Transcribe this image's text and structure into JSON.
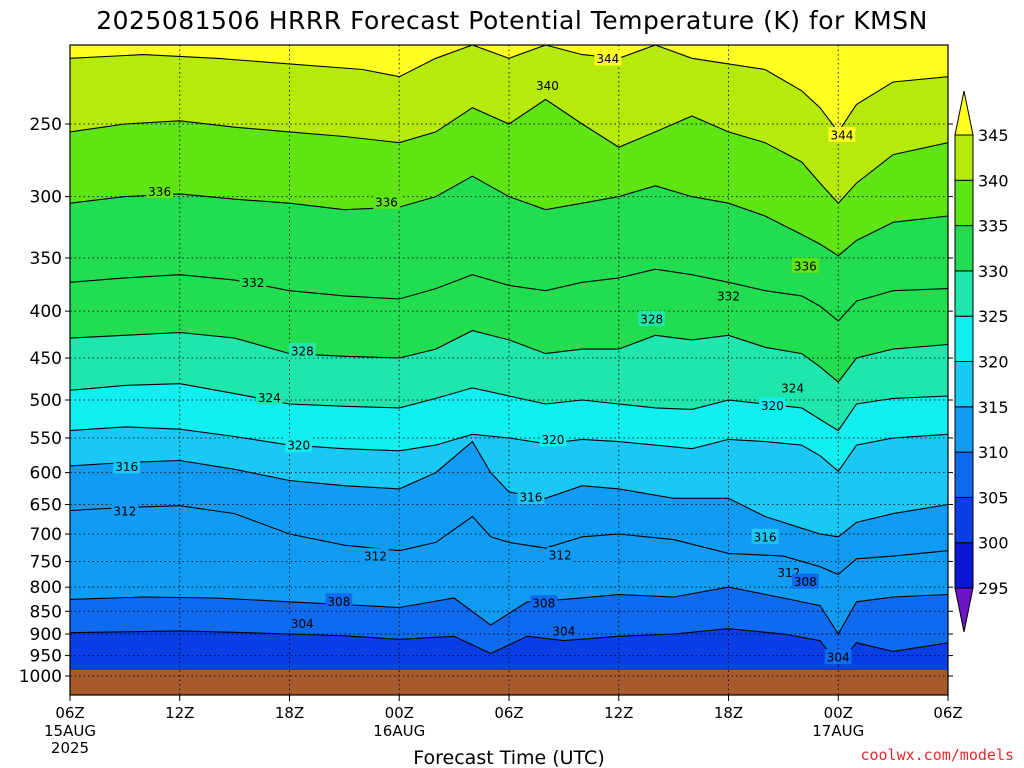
{
  "title": "2025081506 HRRR Forecast Potential Temperature (K) for KMSN",
  "credit": "coolwx.com/models",
  "chart_data": {
    "type": "heatmap",
    "title": "2025081506 HRRR Forecast Potential Temperature (K) for KMSN",
    "xlabel": "Forecast Time (UTC)",
    "ylabel": "",
    "y_scale": "log-pressure",
    "ylim": [
      1000,
      200
    ],
    "y_ticks": [
      250,
      300,
      350,
      400,
      450,
      500,
      550,
      600,
      650,
      700,
      750,
      800,
      850,
      900,
      950,
      1000
    ],
    "x_ticks": [
      {
        "hour": 0,
        "label": "06Z",
        "sub": [
          "15AUG",
          "2025"
        ]
      },
      {
        "hour": 6,
        "label": "12Z",
        "sub": []
      },
      {
        "hour": 12,
        "label": "18Z",
        "sub": []
      },
      {
        "hour": 18,
        "label": "00Z",
        "sub": [
          "16AUG"
        ]
      },
      {
        "hour": 24,
        "label": "06Z",
        "sub": []
      },
      {
        "hour": 30,
        "label": "12Z",
        "sub": []
      },
      {
        "hour": 36,
        "label": "18Z",
        "sub": []
      },
      {
        "hour": 42,
        "label": "00Z",
        "sub": [
          "17AUG"
        ]
      },
      {
        "hour": 48,
        "label": "06Z",
        "sub": []
      }
    ],
    "grid": true,
    "ground_color": "#a65a2e",
    "colorbar": {
      "ticks": [
        295,
        300,
        305,
        310,
        315,
        320,
        325,
        330,
        335,
        340,
        345
      ],
      "bins": [
        {
          "color": "#3a1fe0"
        },
        {
          "color": "#0a16d6"
        },
        {
          "color": "#0b3fe6"
        },
        {
          "color": "#0f6af0"
        },
        {
          "color": "#109cf2"
        },
        {
          "color": "#19c8f5"
        },
        {
          "color": "#11eef0"
        },
        {
          "color": "#1ee6ad"
        },
        {
          "color": "#22dd4f"
        },
        {
          "color": "#5fe414"
        },
        {
          "color": "#b6ea0a"
        },
        {
          "color": "#ffff22"
        }
      ],
      "lower_triangle": "#6d16c8",
      "upper_triangle": "#ffff22"
    },
    "series": [
      {
        "theta": 304,
        "points": [
          [
            0,
            897
          ],
          [
            3,
            895
          ],
          [
            6,
            893
          ],
          [
            9,
            896
          ],
          [
            12,
            900
          ],
          [
            15,
            904
          ],
          [
            18,
            912
          ],
          [
            21,
            905
          ],
          [
            23,
            945
          ],
          [
            25,
            905
          ],
          [
            27,
            915
          ],
          [
            30,
            905
          ],
          [
            33,
            900
          ],
          [
            36,
            888
          ],
          [
            39,
            900
          ],
          [
            41,
            915
          ],
          [
            42,
            972
          ],
          [
            43,
            920
          ],
          [
            45,
            940
          ],
          [
            48,
            920
          ]
        ]
      },
      {
        "theta": 308,
        "points": [
          [
            0,
            825
          ],
          [
            4,
            820
          ],
          [
            8,
            822
          ],
          [
            12,
            830
          ],
          [
            16,
            838
          ],
          [
            18,
            842
          ],
          [
            21,
            822
          ],
          [
            23,
            880
          ],
          [
            25,
            830
          ],
          [
            27,
            825
          ],
          [
            30,
            815
          ],
          [
            33,
            820
          ],
          [
            36,
            800
          ],
          [
            39,
            822
          ],
          [
            41,
            838
          ],
          [
            42,
            900
          ],
          [
            43,
            830
          ],
          [
            45,
            820
          ],
          [
            48,
            815
          ]
        ]
      },
      {
        "theta": 312,
        "points": [
          [
            0,
            660
          ],
          [
            3,
            655
          ],
          [
            6,
            652
          ],
          [
            9,
            665
          ],
          [
            12,
            700
          ],
          [
            15,
            720
          ],
          [
            18,
            730
          ],
          [
            20,
            715
          ],
          [
            22,
            670
          ],
          [
            23,
            705
          ],
          [
            24,
            715
          ],
          [
            26,
            725
          ],
          [
            28,
            705
          ],
          [
            30,
            700
          ],
          [
            33,
            710
          ],
          [
            36,
            735
          ],
          [
            39,
            740
          ],
          [
            41,
            760
          ],
          [
            42,
            775
          ],
          [
            43,
            745
          ],
          [
            45,
            740
          ],
          [
            48,
            730
          ]
        ]
      },
      {
        "theta": 316,
        "points": [
          [
            0,
            590
          ],
          [
            3,
            585
          ],
          [
            6,
            582
          ],
          [
            9,
            595
          ],
          [
            12,
            612
          ],
          [
            15,
            620
          ],
          [
            18,
            625
          ],
          [
            20,
            600
          ],
          [
            22,
            555
          ],
          [
            23,
            600
          ],
          [
            24,
            630
          ],
          [
            26,
            640
          ],
          [
            28,
            620
          ],
          [
            30,
            625
          ],
          [
            33,
            640
          ],
          [
            36,
            640
          ],
          [
            38,
            670
          ],
          [
            40,
            690
          ],
          [
            41,
            700
          ],
          [
            42,
            705
          ],
          [
            43,
            680
          ],
          [
            45,
            665
          ],
          [
            48,
            650
          ]
        ]
      },
      {
        "theta": 320,
        "points": [
          [
            0,
            540
          ],
          [
            3,
            535
          ],
          [
            6,
            538
          ],
          [
            9,
            548
          ],
          [
            12,
            560
          ],
          [
            15,
            565
          ],
          [
            18,
            568
          ],
          [
            20,
            560
          ],
          [
            22,
            545
          ],
          [
            24,
            550
          ],
          [
            26,
            558
          ],
          [
            28,
            552
          ],
          [
            30,
            555
          ],
          [
            32,
            560
          ],
          [
            34,
            565
          ],
          [
            36,
            552
          ],
          [
            38,
            555
          ],
          [
            40,
            560
          ],
          [
            41,
            575
          ],
          [
            42,
            598
          ],
          [
            43,
            560
          ],
          [
            45,
            550
          ],
          [
            48,
            545
          ]
        ]
      },
      {
        "theta": 324,
        "points": [
          [
            0,
            488
          ],
          [
            3,
            482
          ],
          [
            6,
            480
          ],
          [
            9,
            492
          ],
          [
            12,
            505
          ],
          [
            15,
            508
          ],
          [
            18,
            510
          ],
          [
            20,
            498
          ],
          [
            22,
            485
          ],
          [
            24,
            495
          ],
          [
            26,
            505
          ],
          [
            28,
            500
          ],
          [
            30,
            505
          ],
          [
            32,
            510
          ],
          [
            34,
            512
          ],
          [
            36,
            500
          ],
          [
            38,
            505
          ],
          [
            40,
            510
          ],
          [
            41,
            525
          ],
          [
            42,
            540
          ],
          [
            43,
            505
          ],
          [
            45,
            498
          ],
          [
            48,
            495
          ]
        ]
      },
      {
        "theta": 328,
        "points": [
          [
            0,
            428
          ],
          [
            3,
            425
          ],
          [
            6,
            422
          ],
          [
            9,
            428
          ],
          [
            12,
            445
          ],
          [
            15,
            448
          ],
          [
            18,
            450
          ],
          [
            20,
            440
          ],
          [
            22,
            420
          ],
          [
            24,
            430
          ],
          [
            26,
            445
          ],
          [
            28,
            440
          ],
          [
            30,
            440
          ],
          [
            32,
            425
          ],
          [
            34,
            430
          ],
          [
            36,
            425
          ],
          [
            38,
            438
          ],
          [
            40,
            445
          ],
          [
            41,
            460
          ],
          [
            42,
            478
          ],
          [
            43,
            450
          ],
          [
            45,
            440
          ],
          [
            48,
            435
          ]
        ]
      },
      {
        "theta": 332,
        "points": [
          [
            0,
            372
          ],
          [
            3,
            368
          ],
          [
            6,
            365
          ],
          [
            9,
            370
          ],
          [
            12,
            380
          ],
          [
            15,
            385
          ],
          [
            18,
            388
          ],
          [
            20,
            378
          ],
          [
            22,
            365
          ],
          [
            24,
            375
          ],
          [
            26,
            380
          ],
          [
            28,
            372
          ],
          [
            30,
            368
          ],
          [
            32,
            360
          ],
          [
            34,
            365
          ],
          [
            36,
            372
          ],
          [
            38,
            380
          ],
          [
            40,
            385
          ],
          [
            41,
            395
          ],
          [
            42,
            410
          ],
          [
            43,
            390
          ],
          [
            45,
            380
          ],
          [
            48,
            378
          ]
        ]
      },
      {
        "theta": 336,
        "points": [
          [
            0,
            305
          ],
          [
            3,
            300
          ],
          [
            6,
            298
          ],
          [
            9,
            302
          ],
          [
            12,
            305
          ],
          [
            15,
            310
          ],
          [
            18,
            308
          ],
          [
            20,
            300
          ],
          [
            22,
            285
          ],
          [
            24,
            300
          ],
          [
            26,
            310
          ],
          [
            28,
            305
          ],
          [
            30,
            300
          ],
          [
            32,
            292
          ],
          [
            34,
            300
          ],
          [
            36,
            305
          ],
          [
            38,
            315
          ],
          [
            40,
            330
          ],
          [
            41,
            338
          ],
          [
            42,
            348
          ],
          [
            43,
            335
          ],
          [
            45,
            320
          ],
          [
            48,
            315
          ]
        ]
      },
      {
        "theta": 340,
        "points": [
          [
            0,
            255
          ],
          [
            3,
            250
          ],
          [
            6,
            248
          ],
          [
            9,
            252
          ],
          [
            12,
            255
          ],
          [
            15,
            258
          ],
          [
            18,
            262
          ],
          [
            20,
            255
          ],
          [
            22,
            240
          ],
          [
            24,
            250
          ],
          [
            26,
            235
          ],
          [
            28,
            250
          ],
          [
            30,
            265
          ],
          [
            32,
            255
          ],
          [
            34,
            245
          ],
          [
            36,
            255
          ],
          [
            38,
            262
          ],
          [
            40,
            275
          ],
          [
            41,
            290
          ],
          [
            42,
            305
          ],
          [
            43,
            290
          ],
          [
            45,
            270
          ],
          [
            48,
            262
          ]
        ]
      },
      {
        "theta": 344,
        "points": [
          [
            0,
            212
          ],
          [
            4,
            210
          ],
          [
            8,
            212
          ],
          [
            12,
            215
          ],
          [
            16,
            218
          ],
          [
            18,
            222
          ],
          [
            20,
            212
          ],
          [
            22,
            205
          ],
          [
            24,
            212
          ],
          [
            26,
            205
          ],
          [
            28,
            210
          ],
          [
            30,
            212
          ],
          [
            32,
            205
          ],
          [
            34,
            212
          ],
          [
            36,
            215
          ],
          [
            38,
            218
          ],
          [
            40,
            230
          ],
          [
            41,
            240
          ],
          [
            42,
            255
          ],
          [
            43,
            238
          ],
          [
            45,
            225
          ],
          [
            48,
            222
          ]
        ]
      }
    ],
    "contour_labels": [
      {
        "text": "344",
        "hour": 29.4,
        "p": 212
      },
      {
        "text": "340",
        "hour": 26.1,
        "p": 227
      },
      {
        "text": "344",
        "hour": 42.2,
        "p": 257
      },
      {
        "text": "336",
        "hour": 4.9,
        "p": 296
      },
      {
        "text": "336",
        "hour": 17.3,
        "p": 304
      },
      {
        "text": "336",
        "hour": 40.2,
        "p": 357
      },
      {
        "text": "332",
        "hour": 10.0,
        "p": 372
      },
      {
        "text": "332",
        "hour": 36.0,
        "p": 385
      },
      {
        "text": "328",
        "hour": 31.8,
        "p": 408
      },
      {
        "text": "328",
        "hour": 12.7,
        "p": 442
      },
      {
        "text": "324",
        "hour": 39.5,
        "p": 485
      },
      {
        "text": "324",
        "hour": 10.9,
        "p": 497
      },
      {
        "text": "320",
        "hour": 38.4,
        "p": 507
      },
      {
        "text": "320",
        "hour": 26.4,
        "p": 552
      },
      {
        "text": "320",
        "hour": 12.5,
        "p": 560
      },
      {
        "text": "316",
        "hour": 3.1,
        "p": 591
      },
      {
        "text": "316",
        "hour": 25.2,
        "p": 638
      },
      {
        "text": "312",
        "hour": 3.0,
        "p": 661
      },
      {
        "text": "316",
        "hour": 38.0,
        "p": 705
      },
      {
        "text": "312",
        "hour": 16.7,
        "p": 740
      },
      {
        "text": "312",
        "hour": 26.8,
        "p": 738
      },
      {
        "text": "312",
        "hour": 39.3,
        "p": 771
      },
      {
        "text": "308",
        "hour": 40.2,
        "p": 789
      },
      {
        "text": "308",
        "hour": 14.7,
        "p": 829
      },
      {
        "text": "308",
        "hour": 25.9,
        "p": 833
      },
      {
        "text": "304",
        "hour": 12.7,
        "p": 876
      },
      {
        "text": "304",
        "hour": 27.0,
        "p": 893
      },
      {
        "text": "304",
        "hour": 42.0,
        "p": 954
      }
    ]
  }
}
